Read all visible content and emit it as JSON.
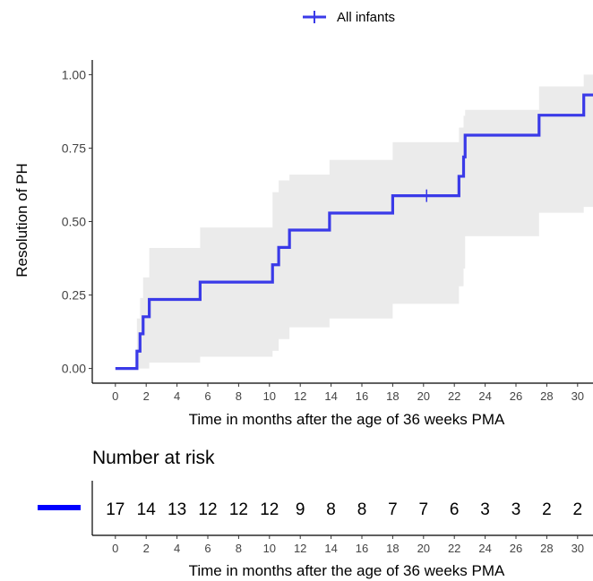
{
  "chart_data": [
    {
      "type": "step",
      "legend": {
        "position": "top",
        "label": "All infants",
        "color": "#3a3ae8"
      },
      "xlabel": "Time in months after the age of 36 weeks PMA",
      "ylabel": "Resolution of PH",
      "xlim": [
        -1.5,
        31
      ],
      "ylim": [
        -0.05,
        1.05
      ],
      "xticks": [
        "0",
        "2",
        "4",
        "6",
        "8",
        "10",
        "12",
        "14",
        "16",
        "18",
        "20",
        "22",
        "24",
        "26",
        "28",
        "30"
      ],
      "yticks": [
        "0.00",
        "0.25",
        "0.50",
        "0.75",
        "1.00"
      ],
      "series": [
        {
          "name": "All infants",
          "color": "#3a3ae8",
          "steps": [
            [
              0,
              0
            ],
            [
              1.4,
              0.059
            ],
            [
              1.6,
              0.118
            ],
            [
              1.8,
              0.176
            ],
            [
              2.2,
              0.235
            ],
            [
              5.5,
              0.294
            ],
            [
              10.2,
              0.353
            ],
            [
              10.6,
              0.412
            ],
            [
              11.3,
              0.471
            ],
            [
              13.9,
              0.529
            ],
            [
              18,
              0.588
            ],
            [
              22.3,
              0.654
            ],
            [
              22.6,
              0.72
            ],
            [
              22.7,
              0.794
            ],
            [
              27.5,
              0.862
            ],
            [
              30.4,
              0.931
            ],
            [
              31,
              0.931
            ]
          ],
          "censor": [
            [
              20.2,
              0.588
            ]
          ],
          "ci_color": "#ebebeb",
          "ci": [
            [
              0,
              0,
              0
            ],
            [
              1.4,
              0,
              0.17
            ],
            [
              1.6,
              0,
              0.24
            ],
            [
              1.8,
              0,
              0.31
            ],
            [
              2.2,
              0.02,
              0.41
            ],
            [
              5.5,
              0.04,
              0.48
            ],
            [
              10.2,
              0.06,
              0.6
            ],
            [
              10.6,
              0.1,
              0.64
            ],
            [
              11.3,
              0.14,
              0.66
            ],
            [
              13.9,
              0.17,
              0.71
            ],
            [
              18,
              0.22,
              0.77
            ],
            [
              22.3,
              0.28,
              0.82
            ],
            [
              22.6,
              0.34,
              0.86
            ],
            [
              22.7,
              0.45,
              0.88
            ],
            [
              27.5,
              0.53,
              0.96
            ],
            [
              30.4,
              0.55,
              1
            ],
            [
              31,
              0.55,
              1
            ]
          ]
        }
      ]
    },
    {
      "type": "table",
      "title": "Number at risk",
      "xlabel": "Time in months after the age of 36 weeks PMA",
      "xticks": [
        "0",
        "2",
        "4",
        "6",
        "8",
        "10",
        "12",
        "14",
        "16",
        "18",
        "20",
        "22",
        "24",
        "26",
        "28",
        "30"
      ],
      "times": [
        0,
        2,
        4,
        6,
        8,
        10,
        12,
        14,
        16,
        18,
        20,
        22,
        24,
        26,
        28,
        30
      ],
      "values": [
        "17",
        "14",
        "13",
        "12",
        "12",
        "12",
        "9",
        "8",
        "8",
        "7",
        "7",
        "6",
        "3",
        "3",
        "2",
        "2"
      ],
      "color": "#0000ff"
    }
  ]
}
